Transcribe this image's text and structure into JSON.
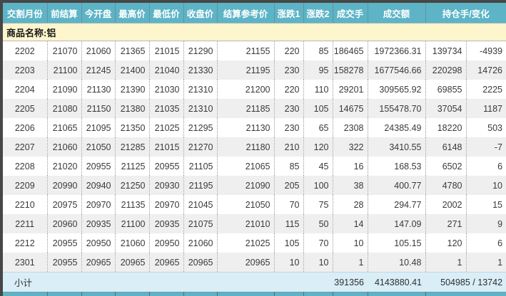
{
  "table": {
    "product_label": "商品名称:铝",
    "columns": [
      {
        "key": "month",
        "label": "交割月份"
      },
      {
        "key": "prev_settle",
        "label": "前结算"
      },
      {
        "key": "open",
        "label": "今开盘"
      },
      {
        "key": "high",
        "label": "最高价"
      },
      {
        "key": "low",
        "label": "最低价"
      },
      {
        "key": "close",
        "label": "收盘价"
      },
      {
        "key": "settle_ref",
        "label": "结算参考价"
      },
      {
        "key": "change1",
        "label": "涨跌1"
      },
      {
        "key": "change2",
        "label": "涨跌2"
      },
      {
        "key": "volume",
        "label": "成交手"
      },
      {
        "key": "turnover",
        "label": "成交额"
      },
      {
        "key": "oi_change",
        "label": "持仓手/变化"
      }
    ],
    "rows": [
      [
        "2202",
        "21070",
        "21060",
        "21365",
        "21015",
        "21290",
        "21155",
        "220",
        "85",
        "186465",
        "1972366.31",
        "139734",
        "-4939"
      ],
      [
        "2203",
        "21100",
        "21245",
        "21400",
        "21040",
        "21330",
        "21195",
        "230",
        "95",
        "158278",
        "1677546.66",
        "220298",
        "14726"
      ],
      [
        "2204",
        "21090",
        "21130",
        "21390",
        "21030",
        "21310",
        "21200",
        "220",
        "110",
        "29201",
        "309565.92",
        "69855",
        "2225"
      ],
      [
        "2205",
        "21080",
        "21150",
        "21380",
        "21035",
        "21310",
        "21185",
        "230",
        "105",
        "14675",
        "155478.70",
        "37054",
        "1187"
      ],
      [
        "2206",
        "21065",
        "21095",
        "21350",
        "21025",
        "21295",
        "21130",
        "230",
        "65",
        "2308",
        "24385.49",
        "18220",
        "503"
      ],
      [
        "2207",
        "21060",
        "21050",
        "21285",
        "21015",
        "21270",
        "21180",
        "210",
        "120",
        "322",
        "3410.55",
        "6148",
        "-7"
      ],
      [
        "2208",
        "21020",
        "20955",
        "21125",
        "20955",
        "21105",
        "21065",
        "85",
        "45",
        "16",
        "168.53",
        "6502",
        "6"
      ],
      [
        "2209",
        "20990",
        "20940",
        "21250",
        "20930",
        "21195",
        "21090",
        "205",
        "100",
        "38",
        "400.77",
        "4780",
        "10"
      ],
      [
        "2210",
        "20975",
        "20970",
        "21135",
        "20970",
        "21045",
        "21050",
        "70",
        "75",
        "28",
        "294.77",
        "2002",
        "15"
      ],
      [
        "2211",
        "20960",
        "20935",
        "21100",
        "20935",
        "21075",
        "21010",
        "115",
        "50",
        "14",
        "147.09",
        "271",
        "9"
      ],
      [
        "2212",
        "20955",
        "20950",
        "21060",
        "20950",
        "21060",
        "21025",
        "105",
        "70",
        "10",
        "105.15",
        "120",
        "6"
      ],
      [
        "2301",
        "20955",
        "20965",
        "20965",
        "20965",
        "20965",
        "20965",
        "10",
        "10",
        "1",
        "10.48",
        "1",
        "1"
      ]
    ],
    "subtotal": {
      "label": "小计",
      "volume": "391356",
      "turnover": "4143880.41",
      "oi_change": "504985 / 13742"
    }
  },
  "appearance": {
    "header_bg": "#5cb4c6",
    "header_text": "#ffffff",
    "product_band_bg": "#fdf5cc",
    "alt_row_bg": "#efefef",
    "subtotal_bg": "#d9eef7",
    "frame_border": "#474747",
    "data_text": "#3a3a3a"
  }
}
